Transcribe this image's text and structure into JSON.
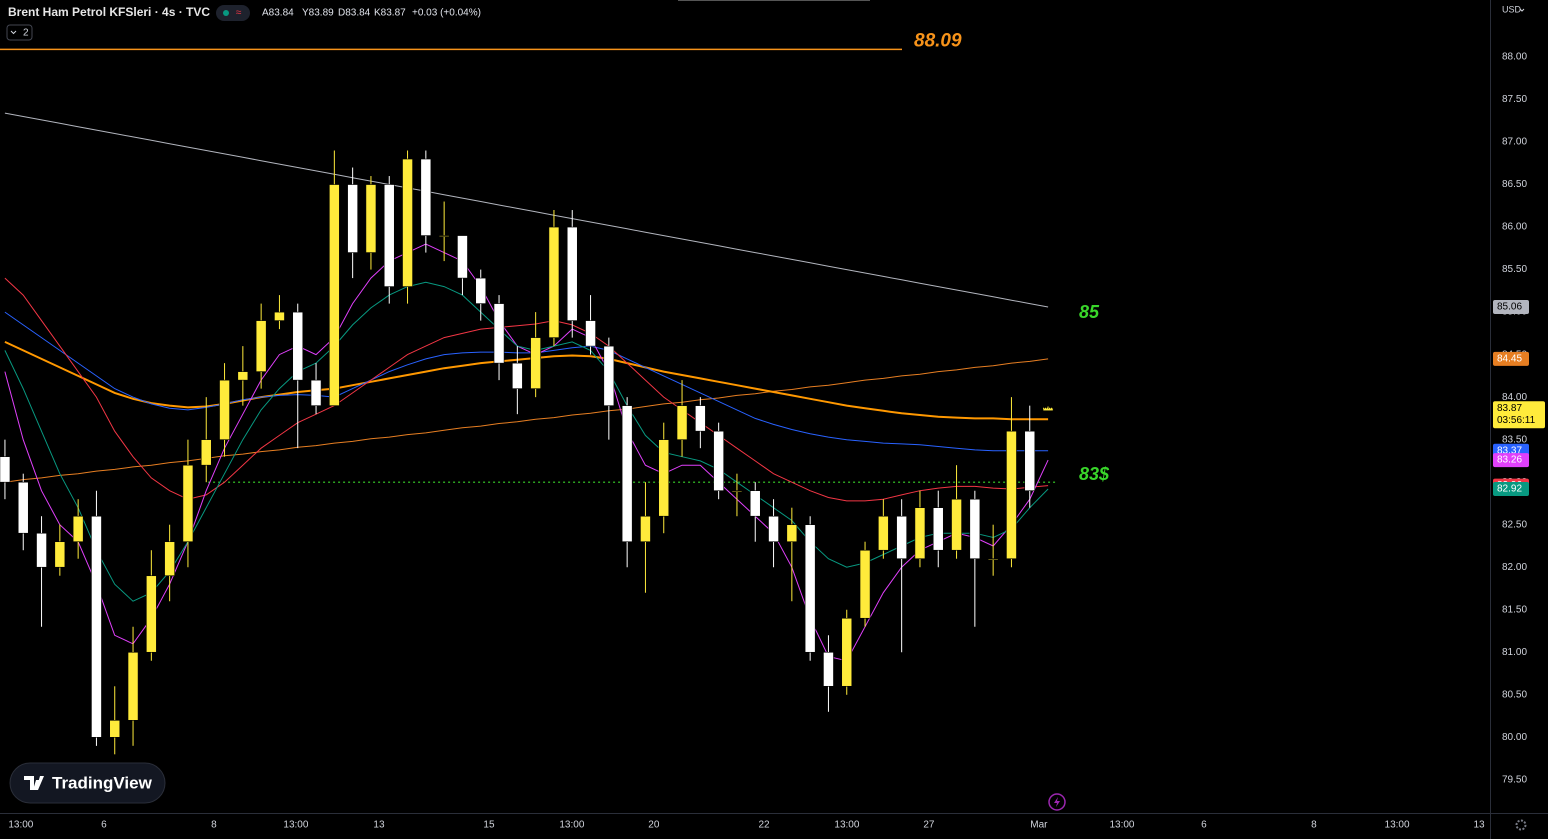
{
  "header": {
    "symbol": "Brent Ham Petrol KFSleri · 4s · TVC",
    "ohlc": [
      "A83.84",
      "Y83.89",
      "D83.84",
      "K83.87"
    ],
    "change": "+0.03 (+0.04%)",
    "indicator_count": "2",
    "currency": "USD",
    "logo": "TradingView"
  },
  "chart_data": {
    "type": "candlestick",
    "xlim": [
      -0.27,
      81.15
    ],
    "xticks": [
      {
        "value": 0.87,
        "label": "13:00"
      },
      {
        "value": 5.41,
        "label": "6"
      },
      {
        "value": 11.42,
        "label": "8"
      },
      {
        "value": 15.9,
        "label": "13:00"
      },
      {
        "value": 20.44,
        "label": "13"
      },
      {
        "value": 26.45,
        "label": "15"
      },
      {
        "value": 30.98,
        "label": "13:00"
      },
      {
        "value": 35.46,
        "label": "20"
      },
      {
        "value": 41.48,
        "label": "22"
      },
      {
        "value": 46.01,
        "label": "13:00"
      },
      {
        "value": 50.49,
        "label": "27"
      },
      {
        "value": 56.5,
        "label": "Mar"
      },
      {
        "value": 61.04,
        "label": "13:00"
      },
      {
        "value": 65.52,
        "label": "6"
      },
      {
        "value": 71.53,
        "label": "8"
      },
      {
        "value": 76.07,
        "label": "13:00"
      },
      {
        "value": 80.55,
        "label": "13"
      }
    ],
    "ylim": [
      79.11,
      88.67
    ],
    "yticks": [
      {
        "value": 79.5,
        "label": "79.50"
      },
      {
        "value": 80,
        "label": "80.00"
      },
      {
        "value": 80.5,
        "label": "80.50"
      },
      {
        "value": 81,
        "label": "81.00"
      },
      {
        "value": 81.5,
        "label": "81.50"
      },
      {
        "value": 82,
        "label": "82.00"
      },
      {
        "value": 82.5,
        "label": "82.50"
      },
      {
        "value": 83,
        "label": "83.00"
      },
      {
        "value": 83.5,
        "label": "83.50"
      },
      {
        "value": 84,
        "label": "84.00"
      },
      {
        "value": 84.5,
        "label": "84.50"
      },
      {
        "value": 85,
        "label": "85.00"
      },
      {
        "value": 85.5,
        "label": "85.50"
      },
      {
        "value": 86,
        "label": "86.00"
      },
      {
        "value": 86.5,
        "label": "86.50"
      },
      {
        "value": 87,
        "label": "87.00"
      },
      {
        "value": 87.5,
        "label": "87.50"
      },
      {
        "value": 88,
        "label": "88.00"
      }
    ],
    "grid": false,
    "up_color": "#ffeb3b",
    "down_color": "#ffffff",
    "candles": {
      "open": [
        83.3,
        83.0,
        82.4,
        82.0,
        82.3,
        82.6,
        80.0,
        80.2,
        81.0,
        81.9,
        82.3,
        83.2,
        83.5,
        84.2,
        84.3,
        84.9,
        85.0,
        84.2,
        83.9,
        86.5,
        85.7,
        86.5,
        85.3,
        86.8,
        85.9,
        85.9,
        85.4,
        85.1,
        84.4,
        84.1,
        84.7,
        86.0,
        84.9,
        84.6,
        83.9,
        82.3,
        82.6,
        83.5,
        83.9,
        83.6,
        82.9,
        82.9,
        82.6,
        82.3,
        82.5,
        81.0,
        80.6,
        81.4,
        82.2,
        82.6,
        82.1,
        82.7,
        82.2,
        82.8,
        82.1,
        82.1,
        83.6,
        83.84
      ],
      "high": [
        83.5,
        83.1,
        82.6,
        82.5,
        82.8,
        82.9,
        80.6,
        81.3,
        82.2,
        82.5,
        83.5,
        84.0,
        84.4,
        84.6,
        85.1,
        85.2,
        85.1,
        84.4,
        86.9,
        86.7,
        86.6,
        86.6,
        86.9,
        86.9,
        86.3,
        85.8,
        85.5,
        85.2,
        84.6,
        85.0,
        86.2,
        86.2,
        85.2,
        84.7,
        84.0,
        83.0,
        83.7,
        84.2,
        84.0,
        83.7,
        83.1,
        83.0,
        82.8,
        82.7,
        82.6,
        81.2,
        81.5,
        82.3,
        82.8,
        82.8,
        82.9,
        82.9,
        83.2,
        82.9,
        82.5,
        84.0,
        83.9,
        83.89
      ],
      "low": [
        82.8,
        82.2,
        81.3,
        81.9,
        82.1,
        79.9,
        79.8,
        79.9,
        80.9,
        81.6,
        82.0,
        83.0,
        83.3,
        83.9,
        84.1,
        84.8,
        83.4,
        83.8,
        83.9,
        85.4,
        85.5,
        85.1,
        85.1,
        85.7,
        85.6,
        85.2,
        84.9,
        84.2,
        83.8,
        84.0,
        84.6,
        84.7,
        84.5,
        83.5,
        82.0,
        81.7,
        82.4,
        83.3,
        83.4,
        82.8,
        82.6,
        82.3,
        82.0,
        81.6,
        80.9,
        80.3,
        80.5,
        81.3,
        82.1,
        81.0,
        82.0,
        82.0,
        82.1,
        81.3,
        81.9,
        82.0,
        82.7,
        83.84
      ],
      "close": [
        83.0,
        82.4,
        82.0,
        82.3,
        82.6,
        80.0,
        80.2,
        81.0,
        81.9,
        82.3,
        83.2,
        83.5,
        84.2,
        84.3,
        84.9,
        85.0,
        84.2,
        83.9,
        86.5,
        85.7,
        86.5,
        85.3,
        86.8,
        85.9,
        85.9,
        85.4,
        85.1,
        84.4,
        84.1,
        84.7,
        86.0,
        84.9,
        84.6,
        83.9,
        82.3,
        82.6,
        83.5,
        83.9,
        83.6,
        82.9,
        82.9,
        82.6,
        82.3,
        82.5,
        81.0,
        80.6,
        81.4,
        82.2,
        82.6,
        82.1,
        82.7,
        82.2,
        82.8,
        82.1,
        82.1,
        83.6,
        82.9,
        83.87
      ]
    },
    "countdown": "03:56:11",
    "series": [
      {
        "color": "#b2b5be",
        "line_width": 1,
        "values": [
          87.34,
          87.3,
          87.26,
          87.22,
          87.18,
          87.14,
          87.1,
          87.06,
          87.02,
          86.98,
          86.94,
          86.9,
          86.86,
          86.82,
          86.78,
          86.74,
          86.7,
          86.66,
          86.62,
          86.58,
          86.54,
          86.5,
          86.46,
          86.42,
          86.38,
          86.34,
          86.3,
          86.26,
          86.22,
          86.18,
          86.14,
          86.1,
          86.06,
          86.02,
          85.98,
          85.94,
          85.9,
          85.86,
          85.82,
          85.78,
          85.74,
          85.7,
          85.66,
          85.62,
          85.58,
          85.54,
          85.5,
          85.46,
          85.42,
          85.38,
          85.34,
          85.3,
          85.26,
          85.22,
          85.18,
          85.14,
          85.1,
          85.06
        ]
      },
      {
        "color": "#e67e22",
        "line_width": 1,
        "values": [
          83.0,
          83.03,
          83.05,
          83.08,
          83.1,
          83.13,
          83.15,
          83.18,
          83.2,
          83.23,
          83.25,
          83.28,
          83.31,
          83.33,
          83.36,
          83.38,
          83.41,
          83.43,
          83.46,
          83.48,
          83.51,
          83.53,
          83.56,
          83.58,
          83.61,
          83.64,
          83.66,
          83.69,
          83.71,
          83.74,
          83.76,
          83.79,
          83.81,
          83.84,
          83.86,
          83.89,
          83.92,
          83.94,
          83.97,
          83.99,
          84.02,
          84.04,
          84.07,
          84.09,
          84.12,
          84.14,
          84.17,
          84.2,
          84.22,
          84.25,
          84.27,
          84.3,
          84.32,
          84.35,
          84.37,
          84.4,
          84.42,
          84.45
        ]
      },
      {
        "color": "#ff9800",
        "line_width": 2,
        "values": [
          84.65,
          84.55,
          84.45,
          84.35,
          84.25,
          84.15,
          84.05,
          83.98,
          83.93,
          83.9,
          83.88,
          83.89,
          83.92,
          83.96,
          84.0,
          84.03,
          84.06,
          84.08,
          84.1,
          84.14,
          84.18,
          84.22,
          84.26,
          84.3,
          84.34,
          84.37,
          84.4,
          84.42,
          84.44,
          84.46,
          84.48,
          84.49,
          84.48,
          84.45,
          84.4,
          84.35,
          84.3,
          84.26,
          84.22,
          84.18,
          84.14,
          84.1,
          84.06,
          84.02,
          83.98,
          83.94,
          83.9,
          83.87,
          83.84,
          83.81,
          83.79,
          83.77,
          83.76,
          83.75,
          83.75,
          83.74,
          83.74,
          83.74
        ]
      },
      {
        "color": "#2962ff",
        "line_width": 1,
        "values": [
          85.0,
          84.85,
          84.7,
          84.55,
          84.4,
          84.25,
          84.1,
          84.0,
          83.92,
          83.87,
          83.85,
          83.88,
          83.92,
          83.97,
          84.0,
          84.02,
          84.03,
          84.02,
          84.0,
          84.1,
          84.2,
          84.3,
          84.38,
          84.45,
          84.5,
          84.52,
          84.53,
          84.53,
          84.52,
          84.52,
          84.55,
          84.58,
          84.6,
          84.55,
          84.45,
          84.35,
          84.25,
          84.15,
          84.05,
          83.95,
          83.85,
          83.75,
          83.68,
          83.62,
          83.57,
          83.53,
          83.5,
          83.48,
          83.46,
          83.45,
          83.44,
          83.42,
          83.4,
          83.38,
          83.37,
          83.37,
          83.37,
          83.37
        ]
      },
      {
        "color": "#f23645",
        "line_width": 1,
        "values": [
          85.4,
          85.2,
          84.9,
          84.6,
          84.3,
          84.0,
          83.6,
          83.3,
          83.05,
          82.9,
          82.8,
          82.85,
          83.0,
          83.2,
          83.4,
          83.55,
          83.7,
          83.8,
          83.9,
          84.05,
          84.2,
          84.35,
          84.5,
          84.6,
          84.7,
          84.75,
          84.8,
          84.82,
          84.84,
          84.86,
          84.9,
          84.85,
          84.75,
          84.6,
          84.4,
          84.2,
          84.0,
          83.85,
          83.7,
          83.55,
          83.4,
          83.25,
          83.1,
          83.0,
          82.9,
          82.82,
          82.78,
          82.78,
          82.8,
          82.85,
          82.9,
          82.93,
          82.95,
          82.95,
          82.93,
          82.92,
          82.94,
          82.96
        ]
      },
      {
        "color": "#e040fb",
        "line_width": 1,
        "values": [
          84.3,
          83.5,
          82.9,
          82.5,
          82.3,
          81.8,
          81.2,
          81.1,
          81.4,
          81.8,
          82.3,
          82.9,
          83.4,
          83.8,
          84.2,
          84.5,
          84.6,
          84.5,
          84.7,
          85.1,
          85.4,
          85.6,
          85.7,
          85.8,
          85.7,
          85.6,
          85.3,
          84.9,
          84.6,
          84.5,
          84.6,
          84.8,
          84.7,
          84.3,
          83.6,
          83.2,
          83.1,
          83.2,
          83.2,
          83.0,
          82.8,
          82.6,
          82.4,
          82.0,
          81.4,
          80.95,
          80.9,
          81.3,
          81.7,
          82.0,
          82.2,
          82.3,
          82.4,
          82.35,
          82.25,
          82.5,
          82.8,
          83.26
        ]
      },
      {
        "color": "#089981",
        "line_width": 1,
        "values": [
          84.55,
          84.1,
          83.6,
          83.1,
          82.7,
          82.2,
          81.8,
          81.6,
          81.7,
          81.95,
          82.3,
          82.7,
          83.1,
          83.5,
          83.85,
          84.1,
          84.3,
          84.4,
          84.6,
          84.85,
          85.05,
          85.2,
          85.3,
          85.35,
          85.3,
          85.2,
          85.0,
          84.8,
          84.6,
          84.55,
          84.6,
          84.65,
          84.55,
          84.3,
          83.9,
          83.55,
          83.35,
          83.3,
          83.25,
          83.15,
          83.0,
          82.85,
          82.7,
          82.55,
          82.3,
          82.1,
          82.0,
          82.05,
          82.15,
          82.25,
          82.35,
          82.4,
          82.4,
          82.4,
          82.35,
          82.45,
          82.7,
          82.92
        ]
      }
    ],
    "hlines": [
      {
        "value": 88.09,
        "color": "#f7931a"
      },
      {
        "value": 83.0,
        "label": "83$",
        "color": "#39d62a"
      }
    ],
    "annotations": [
      "85"
    ]
  }
}
